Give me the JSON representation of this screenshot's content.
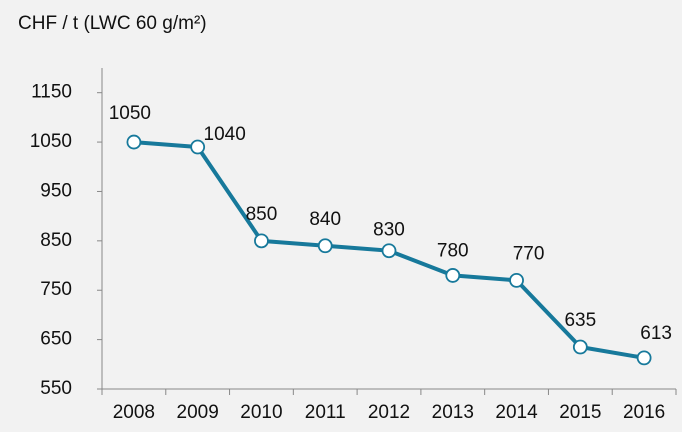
{
  "chart_data": {
    "type": "line",
    "title": "CHF / t (LWC 60 g/m²)",
    "categories": [
      "2008",
      "2009",
      "2010",
      "2011",
      "2012",
      "2013",
      "2014",
      "2015",
      "2016"
    ],
    "values": [
      1050,
      1040,
      850,
      840,
      830,
      780,
      770,
      635,
      613
    ],
    "color": "#17799b",
    "ylim": [
      550,
      1200
    ],
    "yticks": [
      550,
      650,
      750,
      850,
      950,
      1050,
      1150
    ],
    "grid": false
  }
}
